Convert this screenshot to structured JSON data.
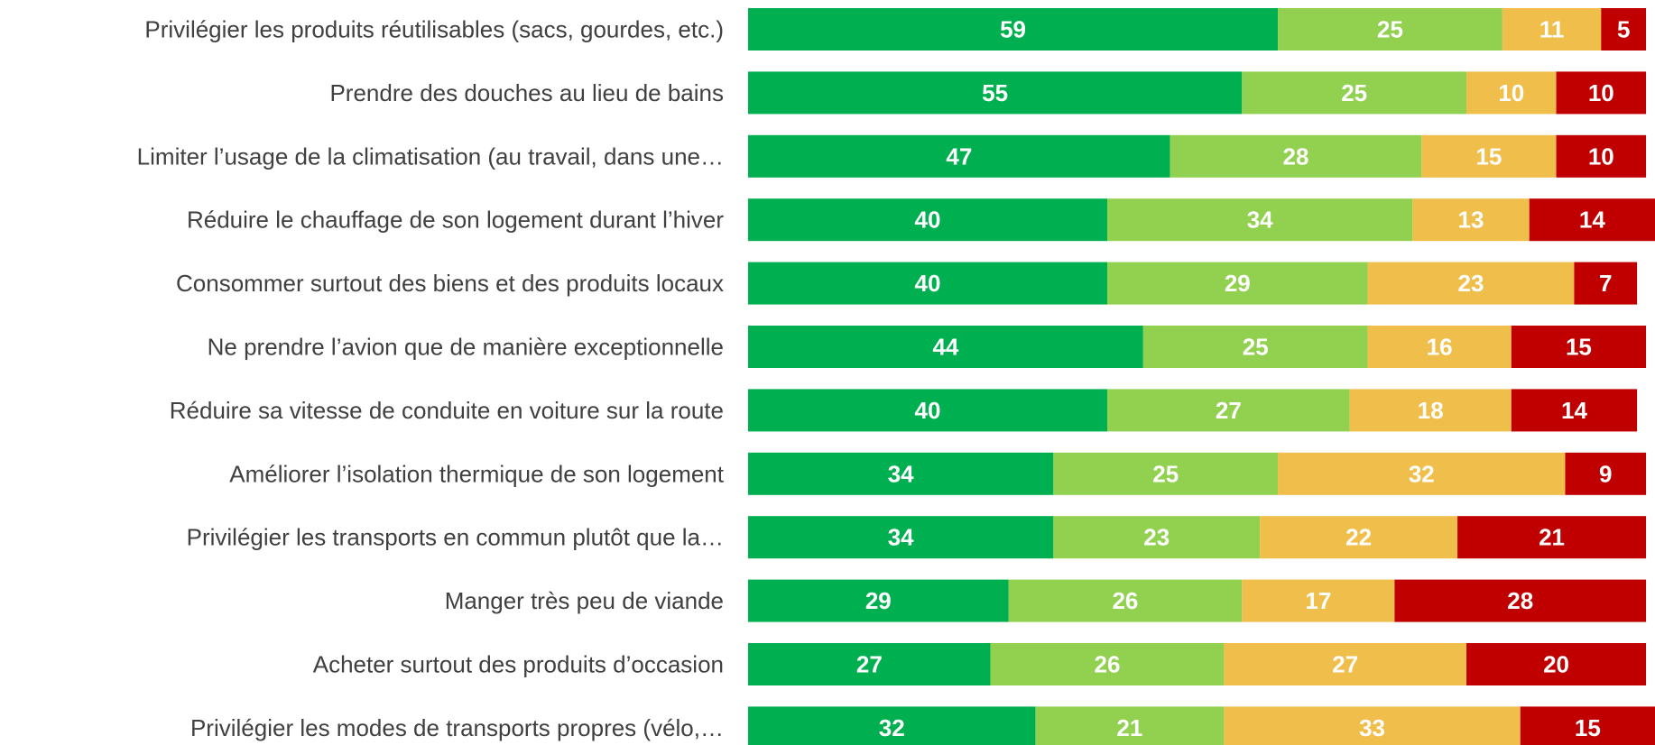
{
  "chart_data": {
    "type": "stacked-barh",
    "categories": [
      "Privilégier les produits réutilisables (sacs, gourdes, etc.)",
      "Prendre des douches au lieu de bains",
      "Limiter l’usage de la climatisation (au travail, dans une…",
      "Réduire le chauffage de son logement durant l’hiver",
      "Consommer surtout des biens et des produits locaux",
      "Ne prendre l’avion que de manière exceptionnelle",
      "Réduire sa vitesse de conduite en voiture sur la route",
      "Améliorer l’isolation thermique de son logement",
      "Privilégier les transports en commun plutôt que la…",
      "Manger très peu de viande",
      "Acheter surtout des produits d’occasion",
      "Privilégier les modes de transports propres (vélo,…"
    ],
    "series": [
      {
        "color": "#00b050",
        "values": [
          59,
          55,
          47,
          40,
          40,
          44,
          40,
          34,
          34,
          29,
          27,
          32
        ]
      },
      {
        "color": "#92d050",
        "values": [
          25,
          25,
          28,
          34,
          29,
          25,
          27,
          25,
          23,
          26,
          26,
          21
        ]
      },
      {
        "color": "#f0be4a",
        "values": [
          11,
          10,
          15,
          13,
          23,
          16,
          18,
          32,
          22,
          17,
          27,
          33
        ]
      },
      {
        "color": "#c00000",
        "values": [
          5,
          10,
          10,
          14,
          7,
          15,
          14,
          9,
          21,
          28,
          20,
          15
        ]
      }
    ],
    "xlim": [
      0,
      101
    ]
  }
}
